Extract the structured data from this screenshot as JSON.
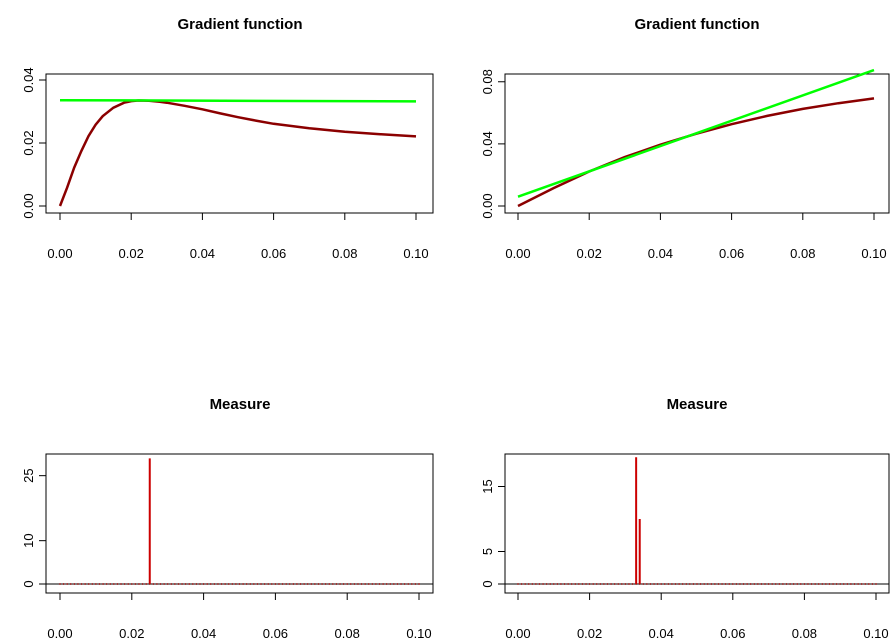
{
  "chart_data": [
    {
      "type": "line",
      "title": "Gradient function",
      "xlabel": "",
      "ylabel": "",
      "xlim": [
        0,
        0.1
      ],
      "ylim": [
        0,
        0.04
      ],
      "x_ticks": [
        "0.00",
        "0.02",
        "0.04",
        "0.06",
        "0.08",
        "0.10"
      ],
      "y_ticks": [
        "0.00",
        "0.02",
        "0.04"
      ],
      "grid": false,
      "series": [
        {
          "color": "#8b0000",
          "x": [
            0,
            0.002,
            0.004,
            0.006,
            0.008,
            0.01,
            0.012,
            0.015,
            0.018,
            0.02,
            0.022,
            0.025,
            0.028,
            0.03,
            0.035,
            0.04,
            0.045,
            0.05,
            0.055,
            0.06,
            0.07,
            0.08,
            0.09,
            0.1
          ],
          "y": [
            0,
            0.0058,
            0.0122,
            0.0175,
            0.0222,
            0.0258,
            0.0285,
            0.0312,
            0.0328,
            0.0333,
            0.0335,
            0.0334,
            0.0331,
            0.0328,
            0.0318,
            0.0307,
            0.0294,
            0.0282,
            0.0271,
            0.0261,
            0.0247,
            0.0236,
            0.0228,
            0.0221
          ]
        },
        {
          "color": "#00ff00",
          "x": [
            0,
            0.1
          ],
          "y": [
            0.0336,
            0.0332
          ]
        }
      ]
    },
    {
      "type": "line",
      "title": "Gradient function",
      "xlabel": "",
      "ylabel": "",
      "xlim": [
        0,
        0.1
      ],
      "ylim": [
        0,
        0.085
      ],
      "x_ticks": [
        "0.00",
        "0.02",
        "0.04",
        "0.06",
        "0.08",
        "0.10"
      ],
      "y_ticks": [
        "0.00",
        "0.04",
        "0.08"
      ],
      "grid": false,
      "series": [
        {
          "color": "#8b0000",
          "x": [
            0,
            0.01,
            0.02,
            0.03,
            0.04,
            0.05,
            0.06,
            0.07,
            0.08,
            0.09,
            0.1
          ],
          "y": [
            0,
            0.0115,
            0.0222,
            0.0315,
            0.0395,
            0.0465,
            0.0527,
            0.058,
            0.0625,
            0.0662,
            0.0693
          ]
        },
        {
          "color": "#00ff00",
          "x": [
            0,
            0.1
          ],
          "y": [
            0.006,
            0.0875
          ]
        }
      ]
    },
    {
      "type": "bar",
      "title": "Measure",
      "xlabel": "",
      "ylabel": "",
      "xlim": [
        0,
        0.1
      ],
      "ylim": [
        0,
        30
      ],
      "x_ticks": [
        "0.00",
        "0.02",
        "0.04",
        "0.06",
        "0.08",
        "0.10"
      ],
      "y_ticks": [
        "0",
        "10",
        "25"
      ],
      "y_tick_values": [
        0,
        10,
        25
      ],
      "grid": false,
      "baseline_points": "dotted zero-mass points across 0.00–0.10",
      "spikes": [
        {
          "x": 0.025,
          "y": 29
        }
      ]
    },
    {
      "type": "bar",
      "title": "Measure",
      "xlabel": "",
      "ylabel": "",
      "xlim": [
        0,
        0.1
      ],
      "ylim": [
        0,
        20
      ],
      "x_ticks": [
        "0.00",
        "0.02",
        "0.04",
        "0.06",
        "0.08",
        "0.10"
      ],
      "y_ticks": [
        "0",
        "5",
        "15"
      ],
      "y_tick_values": [
        0,
        5,
        15
      ],
      "grid": false,
      "baseline_points": "dotted zero-mass points across 0.00–0.10",
      "spikes": [
        {
          "x": 0.033,
          "y": 19.5
        },
        {
          "x": 0.034,
          "y": 10
        }
      ]
    }
  ]
}
